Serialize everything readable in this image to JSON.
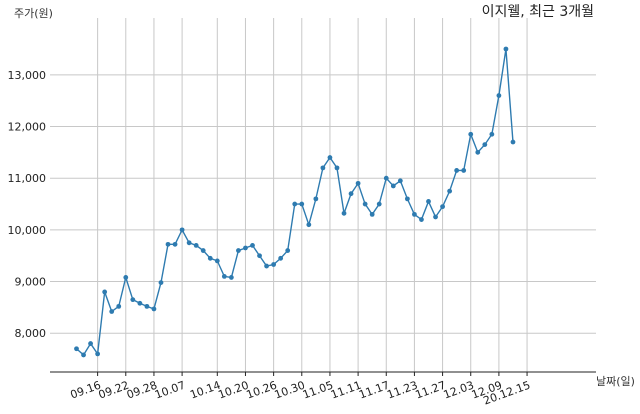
{
  "chart_data": {
    "type": "line",
    "title": "이지웰, 최근 3개월",
    "xlabel": "날짜(일)",
    "ylabel": "주가(원)",
    "ylim": [
      7250,
      14100
    ],
    "y_ticks": [
      8000,
      9000,
      10000,
      11000,
      12000,
      13000
    ],
    "y_tick_labels": [
      "8,000",
      "9,000",
      "10,000",
      "11,000",
      "12,000",
      "13,000"
    ],
    "x_tick_labels": [
      "09.16",
      "09.22",
      "09.28",
      "10.07",
      "10.14",
      "10.20",
      "10.26",
      "10.30",
      "11.05",
      "11.11",
      "11.17",
      "11.23",
      "11.27",
      "12.03",
      "12.09",
      "20.12.15"
    ],
    "x_tick_index": [
      3,
      7,
      11,
      15,
      20,
      24,
      28,
      32,
      36,
      40,
      44,
      48,
      52,
      56,
      60,
      64
    ],
    "grid": true,
    "color": "#2e7bb0",
    "series": [
      {
        "values": [
          7700,
          7580,
          7800,
          7600,
          8800,
          8420,
          8520,
          9080,
          8650,
          8580,
          8520,
          8470,
          8980,
          9720,
          9720,
          10000,
          9750,
          9700,
          9600,
          9450,
          9400,
          9100,
          9080,
          9600,
          9650,
          9700,
          9500,
          9300,
          9330,
          9450,
          9600,
          10500,
          10500,
          10100,
          10600,
          11200,
          11400,
          11200,
          10320,
          10700,
          10900,
          10500,
          10300,
          10500,
          11000,
          10850,
          10950,
          10600,
          10300,
          10200,
          10550,
          10250,
          10450,
          10750,
          11150,
          11150,
          11850,
          11500,
          11650,
          11850,
          12600,
          13500,
          11700
        ]
      }
    ]
  }
}
